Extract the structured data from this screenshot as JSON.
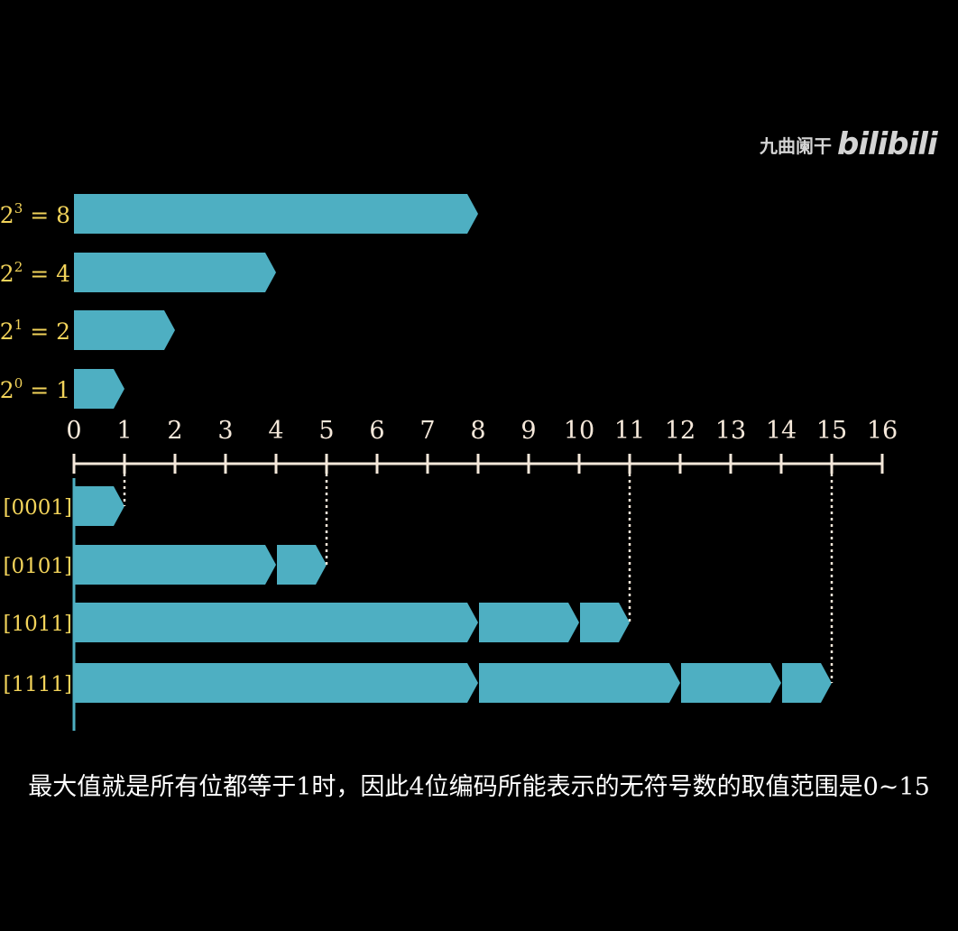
{
  "watermark": {
    "author": "九曲阑干",
    "logo": "bilibili"
  },
  "colors": {
    "bar": "#4eafc2",
    "label": "#f2d35a",
    "axis": "#f5e8da",
    "background": "#000000",
    "caption": "#ffffff"
  },
  "powers": [
    {
      "base": "2",
      "exp": "3",
      "eq": "= 8",
      "value": 8
    },
    {
      "base": "2",
      "exp": "2",
      "eq": "= 4",
      "value": 4
    },
    {
      "base": "2",
      "exp": "1",
      "eq": "= 2",
      "value": 2
    },
    {
      "base": "2",
      "exp": "0",
      "eq": "= 1",
      "value": 1
    }
  ],
  "axis": {
    "min": 0,
    "max": 16,
    "ticks": [
      "0",
      "1",
      "2",
      "3",
      "4",
      "5",
      "6",
      "7",
      "8",
      "9",
      "10",
      "11",
      "12",
      "13",
      "14",
      "15",
      "16"
    ]
  },
  "codes": [
    {
      "label": "[0001]",
      "segments": [
        1
      ],
      "total": 1
    },
    {
      "label": "[0101]",
      "segments": [
        4,
        1
      ],
      "total": 5
    },
    {
      "label": "[1011]",
      "segments": [
        8,
        2,
        1
      ],
      "total": 11
    },
    {
      "label": "[1111]",
      "segments": [
        8,
        4,
        2,
        1
      ],
      "total": 15
    }
  ],
  "caption": "最大值就是所有位都等于1时，因此4位编码所能表示的无符号数的取值范围是0~15"
}
